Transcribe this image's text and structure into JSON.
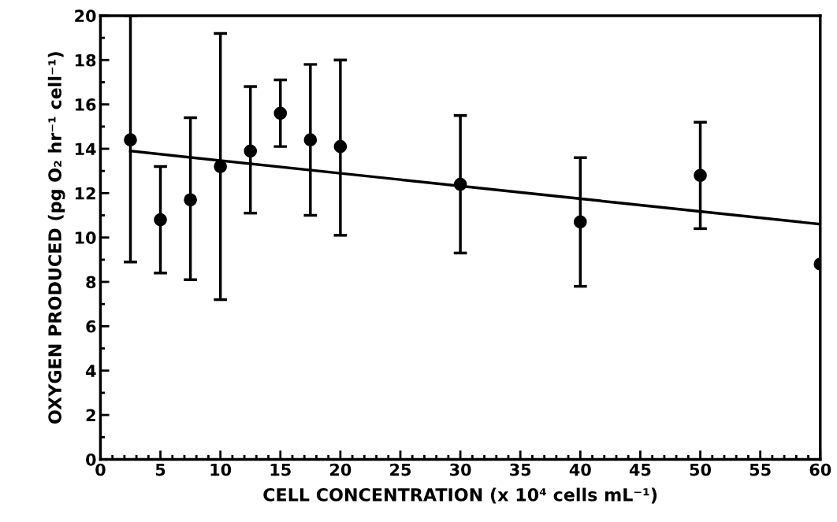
{
  "chart_data": {
    "type": "scatter",
    "xlabel": "CELL CONCENTRATION (x 10⁴ cells mL⁻¹)",
    "ylabel": "OXYGEN PRODUCED (pg O₂ hr⁻¹ cell⁻¹)",
    "xlim": [
      0,
      60
    ],
    "xticks": [
      0,
      5,
      10,
      15,
      20,
      25,
      30,
      35,
      40,
      45,
      50,
      55,
      60
    ],
    "ylim": [
      0,
      20
    ],
    "yticks": [
      0,
      2,
      4,
      6,
      8,
      10,
      12,
      14,
      16,
      18,
      20
    ],
    "grid": false,
    "marker": "circle",
    "series": [
      {
        "color": "#000000",
        "x": [
          2.5,
          5,
          7.5,
          10,
          12.5,
          15,
          17.5,
          20,
          30,
          40,
          50,
          60
        ],
        "values": [
          14.4,
          10.8,
          11.7,
          13.2,
          13.9,
          15.6,
          14.4,
          14.1,
          12.4,
          10.7,
          12.8,
          8.8
        ],
        "errors": [
          [
            8.9,
            20
          ],
          [
            8.4,
            13.2
          ],
          [
            8.1,
            15.4
          ],
          [
            7.2,
            19.2
          ],
          [
            11.1,
            16.8
          ],
          [
            14.1,
            17.1
          ],
          [
            11.0,
            17.8
          ],
          [
            10.1,
            18.0
          ],
          [
            9.3,
            15.5
          ],
          [
            7.8,
            13.6
          ],
          [
            10.4,
            15.2
          ],
          null
        ]
      },
      {
        "type": "line",
        "color": "#000000",
        "line_style": "solid",
        "marker": "none",
        "x": [
          2.5,
          60
        ],
        "values": [
          13.9,
          10.6
        ]
      }
    ]
  }
}
